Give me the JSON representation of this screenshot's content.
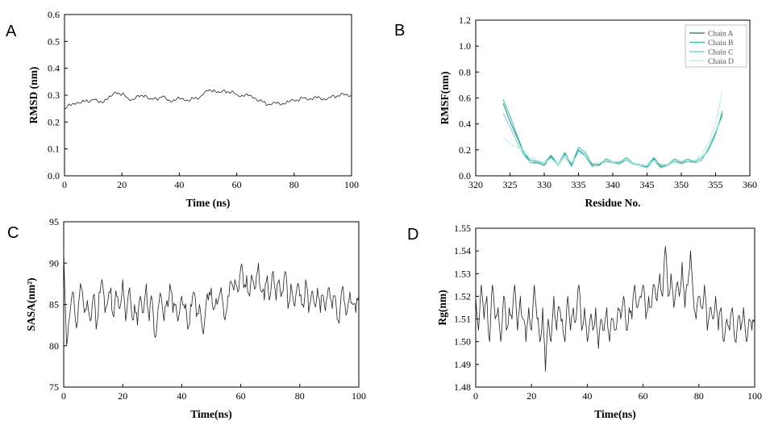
{
  "chart_data": [
    {
      "panel": "A",
      "type": "line",
      "title": "",
      "xlabel": "Time (ns)",
      "ylabel": "RMSD (nm)",
      "xlim": [
        0,
        100
      ],
      "ylim": [
        0,
        0.6
      ],
      "xticks": [
        0,
        20,
        40,
        60,
        80,
        100
      ],
      "yticks": [
        0.0,
        0.1,
        0.2,
        0.3,
        0.4,
        0.5,
        0.6
      ],
      "ytick_decimals": 1,
      "grid": false,
      "series": [
        {
          "color": "#222222",
          "x": [
            0,
            2,
            4,
            6,
            8,
            10,
            12,
            14,
            16,
            18,
            20,
            22,
            24,
            26,
            28,
            30,
            32,
            34,
            36,
            38,
            40,
            42,
            44,
            46,
            48,
            50,
            52,
            54,
            56,
            58,
            60,
            62,
            64,
            66,
            68,
            70,
            72,
            74,
            76,
            78,
            80,
            82,
            84,
            86,
            88,
            90,
            92,
            94,
            96,
            98,
            100
          ],
          "y": [
            0.25,
            0.262,
            0.27,
            0.275,
            0.28,
            0.283,
            0.272,
            0.282,
            0.295,
            0.31,
            0.302,
            0.29,
            0.285,
            0.294,
            0.3,
            0.285,
            0.287,
            0.294,
            0.28,
            0.283,
            0.288,
            0.28,
            0.284,
            0.29,
            0.3,
            0.315,
            0.32,
            0.31,
            0.315,
            0.31,
            0.302,
            0.3,
            0.298,
            0.29,
            0.281,
            0.27,
            0.265,
            0.27,
            0.27,
            0.275,
            0.28,
            0.285,
            0.29,
            0.286,
            0.29,
            0.286,
            0.29,
            0.295,
            0.3,
            0.302,
            0.3
          ]
        }
      ]
    },
    {
      "panel": "B",
      "type": "line",
      "title": "",
      "xlabel": "Residue No.",
      "ylabel": "RMSF(nm)",
      "xlim": [
        320,
        360
      ],
      "ylim": [
        0,
        1.2
      ],
      "xticks": [
        320,
        325,
        330,
        335,
        340,
        345,
        350,
        355,
        360
      ],
      "yticks": [
        0.0,
        0.2,
        0.4,
        0.6,
        0.8,
        1.0,
        1.2
      ],
      "ytick_decimals": 1,
      "grid": false,
      "legend": "top-right",
      "series": [
        {
          "name": "Chain A",
          "color": "#3a8f8a",
          "x": [
            324,
            325,
            326,
            327,
            328,
            329,
            330,
            331,
            332,
            333,
            334,
            335,
            336,
            337,
            338,
            339,
            340,
            341,
            342,
            343,
            344,
            345,
            346,
            347,
            348,
            349,
            350,
            351,
            352,
            353,
            354,
            355,
            356
          ],
          "y": [
            0.56,
            0.42,
            0.3,
            0.18,
            0.1,
            0.1,
            0.08,
            0.15,
            0.08,
            0.17,
            0.08,
            0.2,
            0.16,
            0.08,
            0.08,
            0.12,
            0.1,
            0.1,
            0.13,
            0.09,
            0.08,
            0.07,
            0.13,
            0.07,
            0.08,
            0.12,
            0.1,
            0.12,
            0.1,
            0.12,
            0.22,
            0.33,
            0.48
          ]
        },
        {
          "name": "Chain B",
          "color": "#45bfb3",
          "x": [
            324,
            325,
            326,
            327,
            328,
            329,
            330,
            331,
            332,
            333,
            334,
            335,
            336,
            337,
            338,
            339,
            340,
            341,
            342,
            343,
            344,
            345,
            346,
            347,
            348,
            349,
            350,
            351,
            352,
            353,
            354,
            355,
            356
          ],
          "y": [
            0.59,
            0.46,
            0.32,
            0.18,
            0.12,
            0.11,
            0.1,
            0.16,
            0.09,
            0.18,
            0.09,
            0.22,
            0.18,
            0.09,
            0.09,
            0.13,
            0.11,
            0.11,
            0.14,
            0.1,
            0.09,
            0.08,
            0.14,
            0.08,
            0.09,
            0.13,
            0.11,
            0.13,
            0.11,
            0.14,
            0.2,
            0.32,
            0.5
          ]
        },
        {
          "name": "Chain C",
          "color": "#7dd6cc",
          "x": [
            324,
            325,
            326,
            327,
            328,
            329,
            330,
            331,
            332,
            333,
            334,
            335,
            336,
            337,
            338,
            339,
            340,
            341,
            342,
            343,
            344,
            345,
            346,
            347,
            348,
            349,
            350,
            351,
            352,
            353,
            354,
            355,
            356
          ],
          "y": [
            0.48,
            0.38,
            0.26,
            0.16,
            0.1,
            0.11,
            0.09,
            0.14,
            0.08,
            0.15,
            0.07,
            0.19,
            0.15,
            0.07,
            0.09,
            0.11,
            0.1,
            0.09,
            0.12,
            0.09,
            0.08,
            0.06,
            0.12,
            0.06,
            0.08,
            0.11,
            0.09,
            0.11,
            0.1,
            0.12,
            0.22,
            0.34,
            0.46
          ]
        },
        {
          "name": "Chain D",
          "color": "#c3ece6",
          "x": [
            324,
            325,
            326,
            327,
            328,
            329,
            330,
            331,
            332,
            333,
            334,
            335,
            336,
            337,
            338,
            339,
            340,
            341,
            342,
            343,
            344,
            345,
            346,
            347,
            348,
            349,
            350,
            351,
            352,
            353,
            354,
            355,
            356
          ],
          "y": [
            0.3,
            0.25,
            0.22,
            0.2,
            0.14,
            0.12,
            0.1,
            0.13,
            0.09,
            0.16,
            0.1,
            0.17,
            0.16,
            0.1,
            0.1,
            0.12,
            0.11,
            0.11,
            0.13,
            0.1,
            0.09,
            0.08,
            0.12,
            0.09,
            0.09,
            0.12,
            0.11,
            0.12,
            0.12,
            0.16,
            0.26,
            0.4,
            0.65
          ]
        }
      ]
    },
    {
      "panel": "C",
      "type": "line",
      "title": "",
      "xlabel": "Time(ns)",
      "ylabel": "SASA(nm²)",
      "xlim": [
        0,
        100
      ],
      "ylim": [
        75,
        95
      ],
      "xticks": [
        0,
        20,
        40,
        60,
        80,
        100
      ],
      "yticks": [
        75,
        80,
        85,
        90,
        95
      ],
      "ytick_decimals": 0,
      "grid": false,
      "series": [
        {
          "color": "#222222",
          "x": [
            0,
            1,
            2,
            3,
            4,
            5,
            6,
            7,
            8,
            9,
            10,
            11,
            12,
            13,
            14,
            15,
            16,
            17,
            18,
            19,
            20,
            21,
            22,
            23,
            24,
            25,
            26,
            27,
            28,
            29,
            30,
            31,
            32,
            33,
            34,
            35,
            36,
            37,
            38,
            39,
            40,
            41,
            42,
            43,
            44,
            45,
            46,
            47,
            48,
            49,
            50,
            51,
            52,
            53,
            54,
            55,
            56,
            57,
            58,
            59,
            60,
            61,
            62,
            63,
            64,
            65,
            66,
            67,
            68,
            69,
            70,
            71,
            72,
            73,
            74,
            75,
            76,
            77,
            78,
            79,
            80,
            81,
            82,
            83,
            84,
            85,
            86,
            87,
            88,
            89,
            90,
            91,
            92,
            93,
            94,
            95,
            96,
            97,
            98,
            99,
            100
          ],
          "y": [
            91.5,
            80,
            83.5,
            86.5,
            83,
            85,
            87,
            84,
            85.5,
            83,
            86,
            82,
            86.5,
            88,
            84,
            85.5,
            87,
            83.5,
            86,
            84.5,
            88,
            83,
            86.5,
            84,
            85,
            82.5,
            86,
            84,
            87.5,
            83,
            85.5,
            81,
            84.5,
            86,
            83,
            85.5,
            87.5,
            84,
            85,
            83.5,
            86,
            84.5,
            82,
            85,
            86.5,
            83.5,
            85,
            82,
            84,
            85.5,
            87,
            84.5,
            85,
            86.5,
            85,
            84,
            86,
            87.5,
            88,
            86.5,
            89.5,
            87,
            88.5,
            86,
            88,
            87,
            90,
            86.5,
            85.5,
            88.5,
            86,
            89,
            85.5,
            88,
            86.5,
            89,
            84.5,
            87.5,
            85,
            87,
            86,
            85,
            88,
            84,
            86.5,
            85,
            87,
            84,
            86,
            85.5,
            87,
            84.5,
            86,
            83,
            86,
            85.5,
            84,
            86.5,
            85,
            84,
            86
          ]
        }
      ]
    },
    {
      "panel": "D",
      "type": "line",
      "title": "",
      "xlabel": "Time(ns)",
      "ylabel": "Rg(nm)",
      "xlim": [
        0,
        100
      ],
      "ylim": [
        1.48,
        1.55
      ],
      "xticks": [
        0,
        20,
        40,
        60,
        80,
        100
      ],
      "yticks": [
        1.48,
        1.49,
        1.5,
        1.51,
        1.52,
        1.53,
        1.54,
        1.55
      ],
      "ytick_decimals": 2,
      "grid": false,
      "series": [
        {
          "color": "#222222",
          "x": [
            0,
            1,
            2,
            3,
            4,
            5,
            6,
            7,
            8,
            9,
            10,
            11,
            12,
            13,
            14,
            15,
            16,
            17,
            18,
            19,
            20,
            21,
            22,
            23,
            24,
            25,
            26,
            27,
            28,
            29,
            30,
            31,
            32,
            33,
            34,
            35,
            36,
            37,
            38,
            39,
            40,
            41,
            42,
            43,
            44,
            45,
            46,
            47,
            48,
            49,
            50,
            51,
            52,
            53,
            54,
            55,
            56,
            57,
            58,
            59,
            60,
            61,
            62,
            63,
            64,
            65,
            66,
            67,
            68,
            69,
            70,
            71,
            72,
            73,
            74,
            75,
            76,
            77,
            78,
            79,
            80,
            81,
            82,
            83,
            84,
            85,
            86,
            87,
            88,
            89,
            90,
            91,
            92,
            93,
            94,
            95,
            96,
            97,
            98,
            99,
            100
          ],
          "y": [
            1.52,
            1.505,
            1.525,
            1.51,
            1.52,
            1.5,
            1.525,
            1.51,
            1.515,
            1.5,
            1.52,
            1.505,
            1.515,
            1.51,
            1.525,
            1.505,
            1.52,
            1.51,
            1.5,
            1.515,
            1.505,
            1.525,
            1.51,
            1.5,
            1.515,
            1.487,
            1.51,
            1.5,
            1.52,
            1.505,
            1.515,
            1.51,
            1.5,
            1.52,
            1.505,
            1.515,
            1.51,
            1.525,
            1.505,
            1.515,
            1.5,
            1.51,
            1.505,
            1.515,
            1.497,
            1.51,
            1.505,
            1.515,
            1.5,
            1.51,
            1.505,
            1.515,
            1.51,
            1.52,
            1.505,
            1.515,
            1.51,
            1.525,
            1.515,
            1.52,
            1.525,
            1.51,
            1.52,
            1.515,
            1.525,
            1.518,
            1.53,
            1.52,
            1.542,
            1.52,
            1.53,
            1.515,
            1.525,
            1.52,
            1.535,
            1.515,
            1.525,
            1.54,
            1.52,
            1.51,
            1.52,
            1.515,
            1.525,
            1.505,
            1.515,
            1.51,
            1.52,
            1.505,
            1.515,
            1.5,
            1.51,
            1.505,
            1.515,
            1.5,
            1.51,
            1.505,
            1.515,
            1.5,
            1.51,
            1.505,
            1.51
          ]
        }
      ]
    }
  ]
}
